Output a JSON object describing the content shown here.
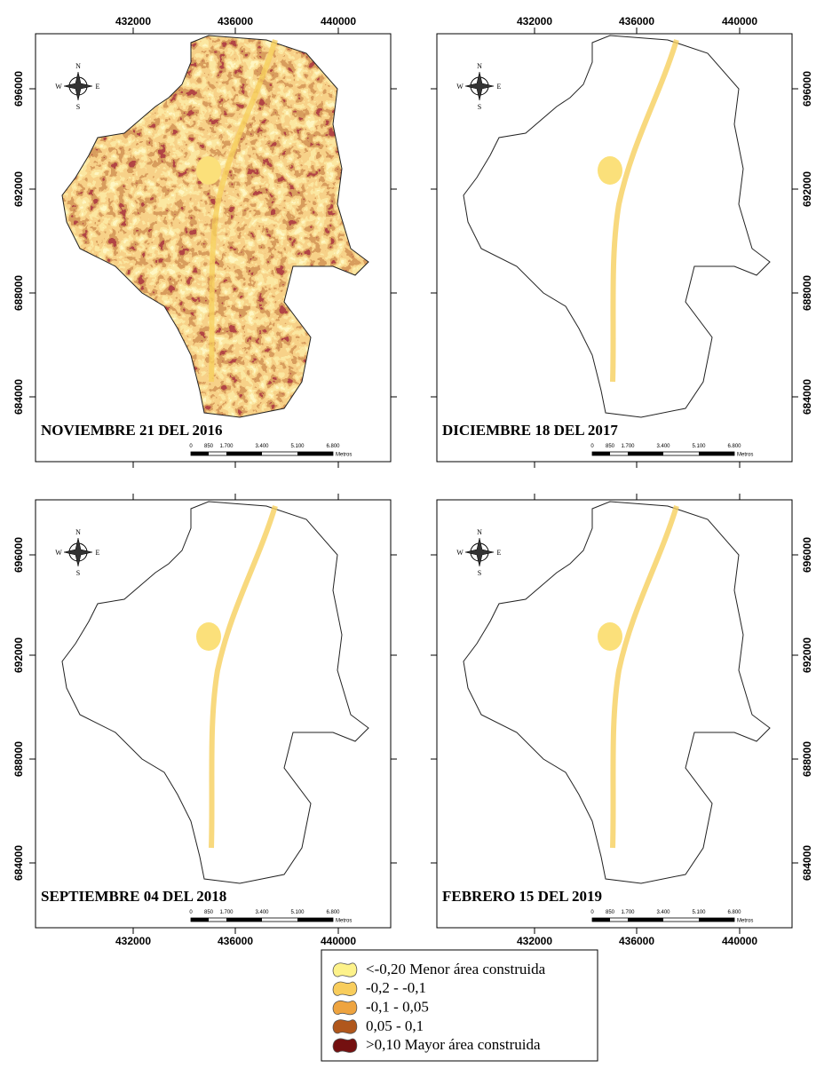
{
  "panels": [
    {
      "title": "NOVIEMBRE 21 DEL 2016"
    },
    {
      "title": "DICIEMBRE 18 DEL 2017"
    },
    {
      "title": "SEPTIEMBRE 04 DEL 2018"
    },
    {
      "title": "FEBRERO 15 DEL 2019"
    }
  ],
  "x_ticks": [
    432000,
    436000,
    440000
  ],
  "y_ticks": [
    696000,
    692000,
    688000,
    684000
  ],
  "scale_bar": {
    "labels": [
      "0",
      "850",
      "1.700",
      "3.400",
      "5.100",
      "6.800"
    ],
    "unit": "Metros"
  },
  "compass": {
    "n": "N",
    "s": "S",
    "e": "E",
    "w": "W"
  },
  "legend": [
    {
      "label": "<-0,20 Menor área construida",
      "color": "#fdf28a"
    },
    {
      "label": "-0,2 - -0,1",
      "color": "#f8cd5c"
    },
    {
      "label": "-0,1 - 0,05",
      "color": "#eea440"
    },
    {
      "label": "0,05 - 0,1",
      "color": "#b0571c"
    },
    {
      "label": ">0,10 Mayor área construida",
      "color": "#741010"
    }
  ]
}
